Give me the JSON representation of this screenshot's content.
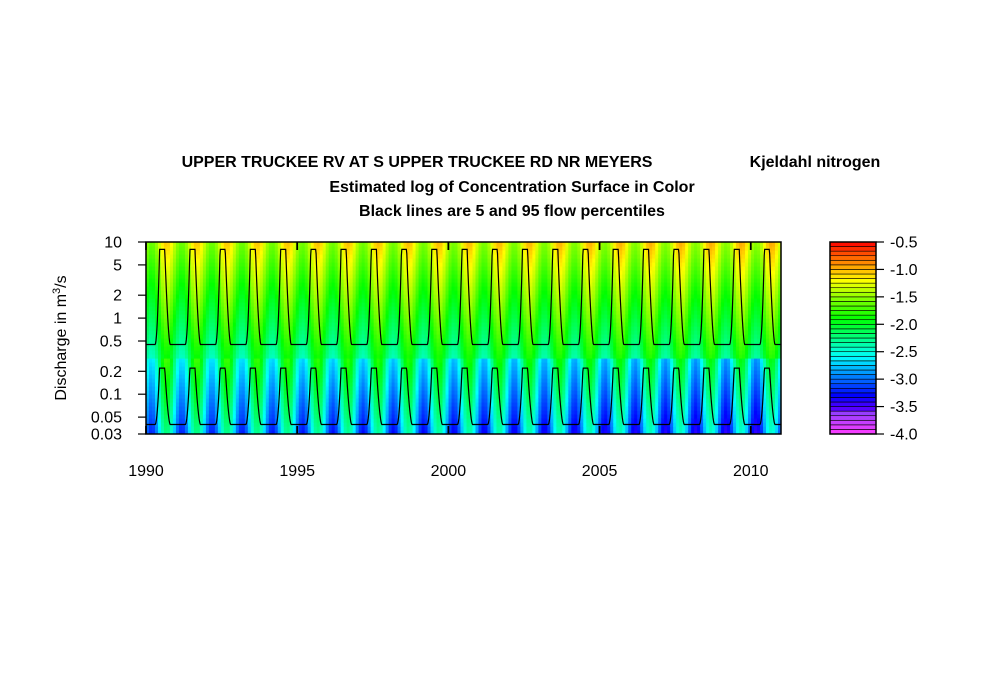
{
  "chart_data": {
    "type": "heatmap",
    "title": {
      "line1_left": "UPPER TRUCKEE RV AT S UPPER TRUCKEE RD NR MEYERS",
      "line1_right": "Kjeldahl nitrogen",
      "line2": "Estimated log of Concentration Surface in Color",
      "line3": "Black lines are 5 and 95 flow percentiles"
    },
    "ylabel": {
      "prefix": "Discharge in m",
      "superscript": "3",
      "suffix": "/s"
    },
    "y_scale": "log",
    "ylim": [
      0.03,
      10
    ],
    "xlim": [
      1990,
      2011
    ],
    "x_ticks": [
      "1990",
      "1995",
      "2000",
      "2005",
      "2010"
    ],
    "x_tick_values": [
      1990,
      1995,
      2000,
      2005,
      2010
    ],
    "y_ticks": [
      "10",
      "5",
      "2",
      "1",
      "0.5",
      "0.2",
      "0.1",
      "0.05",
      "0.03"
    ],
    "y_tick_values": [
      10,
      5,
      2,
      1,
      0.5,
      0.2,
      0.1,
      0.05,
      0.03
    ],
    "colorbar": {
      "range": [
        -4.0,
        -0.5
      ],
      "ticks": [
        "-0.5",
        "-1.0",
        "-1.5",
        "-2.0",
        "-2.5",
        "-3.0",
        "-3.5",
        "-4.0"
      ],
      "tick_values": [
        -0.5,
        -1.0,
        -1.5,
        -2.0,
        -2.5,
        -3.0,
        -3.5,
        -4.0
      ]
    },
    "series": [
      {
        "percentile": 95,
        "min": 0.45,
        "max": 8,
        "color": "#000000"
      },
      {
        "percentile": 5,
        "min": 0.04,
        "max": 0.22,
        "color": "#000000"
      }
    ]
  }
}
